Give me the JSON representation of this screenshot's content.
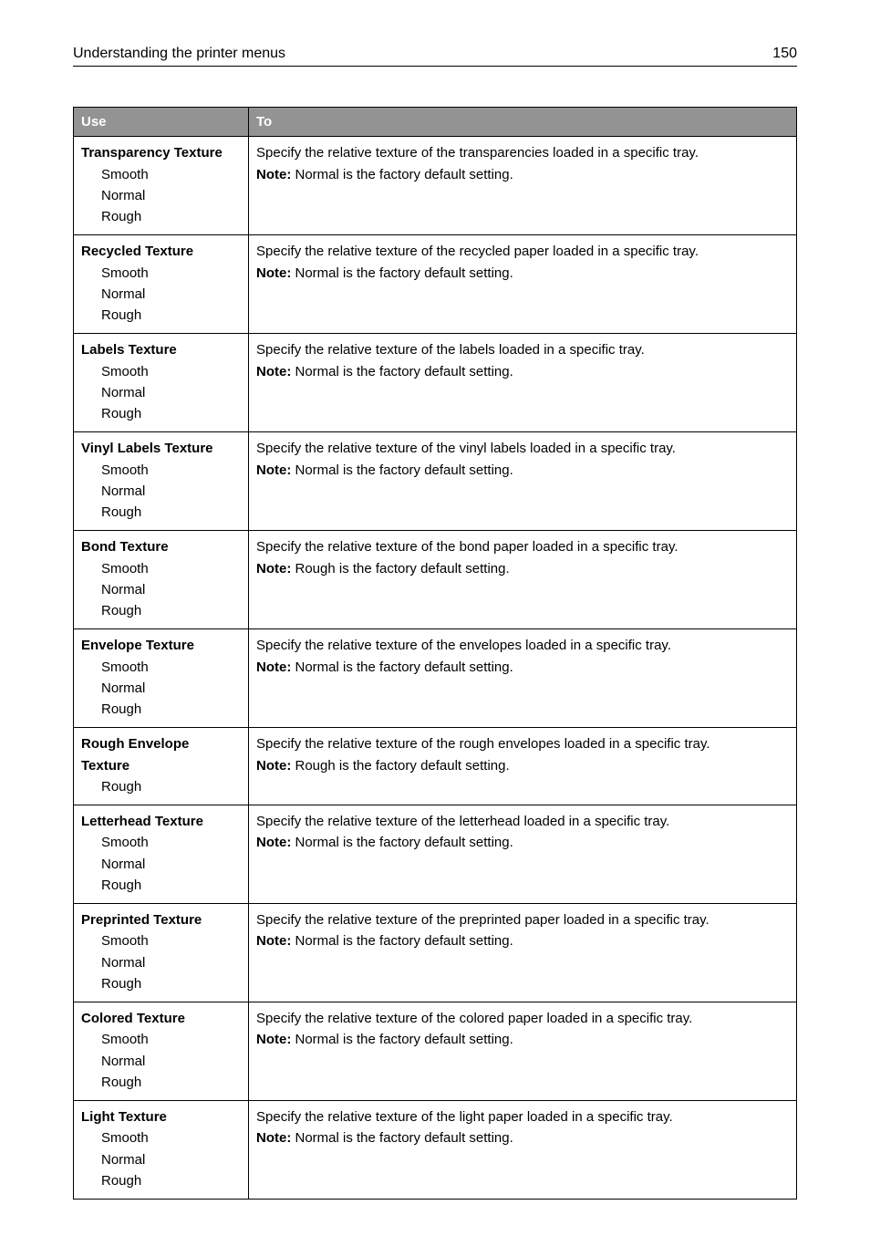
{
  "header": {
    "title": "Understanding the printer menus",
    "page": "150"
  },
  "table": {
    "columns": [
      "Use",
      "To"
    ],
    "rows": [
      {
        "title": "Transparency Texture",
        "options": [
          "Smooth",
          "Normal",
          "Rough"
        ],
        "desc": "Specify the relative texture of the transparencies loaded in a specific tray.",
        "note_label": "Note:",
        "note_text": " Normal is the factory default setting."
      },
      {
        "title": "Recycled Texture",
        "options": [
          "Smooth",
          "Normal",
          "Rough"
        ],
        "desc": "Specify the relative texture of the recycled paper loaded in a specific tray.",
        "note_label": "Note:",
        "note_text": " Normal is the factory default setting."
      },
      {
        "title": "Labels Texture",
        "options": [
          "Smooth",
          "Normal",
          "Rough"
        ],
        "desc": "Specify the relative texture of the labels loaded in a specific tray.",
        "note_label": "Note:",
        "note_text": " Normal is the factory default setting."
      },
      {
        "title": "Vinyl Labels Texture",
        "options": [
          "Smooth",
          "Normal",
          "Rough"
        ],
        "desc": "Specify the relative texture of the vinyl labels loaded in a specific tray.",
        "note_label": "Note:",
        "note_text": " Normal is the factory default setting."
      },
      {
        "title": "Bond Texture",
        "options": [
          "Smooth",
          "Normal",
          "Rough"
        ],
        "desc": "Specify the relative texture of the bond paper loaded in a specific tray.",
        "note_label": "Note:",
        "note_text": " Rough is the factory default setting."
      },
      {
        "title": "Envelope Texture",
        "options": [
          "Smooth",
          "Normal",
          "Rough"
        ],
        "desc": "Specify the relative texture of the envelopes loaded in a specific tray.",
        "note_label": "Note:",
        "note_text": " Normal is the factory default setting."
      },
      {
        "title": "Rough Envelope Texture",
        "options": [
          "Rough"
        ],
        "desc": "Specify the relative texture of the rough envelopes loaded in a specific tray.",
        "note_label": "Note:",
        "note_text": " Rough is the factory default setting."
      },
      {
        "title": "Letterhead Texture",
        "options": [
          "Smooth",
          "Normal",
          "Rough"
        ],
        "desc": "Specify the relative texture of the letterhead loaded in a specific tray.",
        "note_label": "Note:",
        "note_text": " Normal is the factory default setting."
      },
      {
        "title": "Preprinted Texture",
        "options": [
          "Smooth",
          "Normal",
          "Rough"
        ],
        "desc": "Specify the relative texture of the preprinted paper loaded in a specific tray.",
        "note_label": "Note:",
        "note_text": " Normal is the factory default setting."
      },
      {
        "title": "Colored Texture",
        "options": [
          "Smooth",
          "Normal",
          "Rough"
        ],
        "desc": "Specify the relative texture of the colored paper loaded in a specific tray.",
        "note_label": "Note:",
        "note_text": " Normal is the factory default setting."
      },
      {
        "title": "Light Texture",
        "options": [
          "Smooth",
          "Normal",
          "Rough"
        ],
        "desc": "Specify the relative texture of the light paper loaded in a specific tray.",
        "note_label": "Note:",
        "note_text": " Normal is the factory default setting."
      }
    ]
  }
}
